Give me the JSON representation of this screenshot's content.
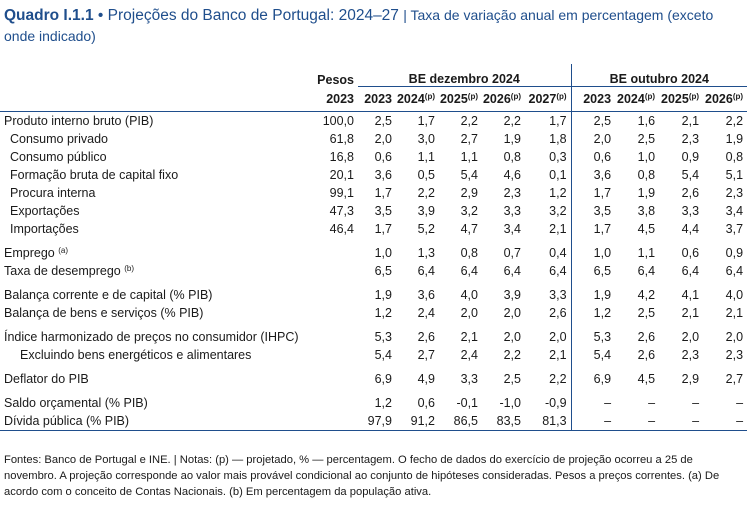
{
  "title": {
    "label": "Quadro I.1.1",
    "bullet": "•",
    "main": "Projeções do Banco de Portugal: 2024–27",
    "sub": "| Taxa de variação anual em percentagem (exceto onde indicado)"
  },
  "header": {
    "weights_label": "Pesos",
    "weights_year": "2023",
    "group_dec": "BE dezembro 2024",
    "group_oct": "BE outubro 2024",
    "years_dec": [
      {
        "y": "2023",
        "sup": ""
      },
      {
        "y": "2024",
        "sup": "(p)"
      },
      {
        "y": "2025",
        "sup": "(p)"
      },
      {
        "y": "2026",
        "sup": "(p)"
      },
      {
        "y": "2027",
        "sup": "(p)"
      }
    ],
    "years_oct": [
      {
        "y": "2023",
        "sup": ""
      },
      {
        "y": "2024",
        "sup": "(p)"
      },
      {
        "y": "2025",
        "sup": "(p)"
      },
      {
        "y": "2026",
        "sup": "(p)"
      }
    ]
  },
  "rows": [
    {
      "label": "Produto interno bruto (PIB)",
      "sup": "",
      "indent": 0,
      "w": "100,0",
      "dec": [
        "2,5",
        "1,7",
        "2,2",
        "2,2",
        "1,7"
      ],
      "oct": [
        "2,5",
        "1,6",
        "2,1",
        "2,2"
      ]
    },
    {
      "label": "Consumo privado",
      "sup": "",
      "indent": 1,
      "w": "61,8",
      "dec": [
        "2,0",
        "3,0",
        "2,7",
        "1,9",
        "1,8"
      ],
      "oct": [
        "2,0",
        "2,5",
        "2,3",
        "1,9"
      ]
    },
    {
      "label": "Consumo público",
      "sup": "",
      "indent": 1,
      "w": "16,8",
      "dec": [
        "0,6",
        "1,1",
        "1,1",
        "0,8",
        "0,3"
      ],
      "oct": [
        "0,6",
        "1,0",
        "0,9",
        "0,8"
      ]
    },
    {
      "label": "Formação bruta de capital fixo",
      "sup": "",
      "indent": 1,
      "w": "20,1",
      "dec": [
        "3,6",
        "0,5",
        "5,4",
        "4,6",
        "0,1"
      ],
      "oct": [
        "3,6",
        "0,8",
        "5,4",
        "5,1"
      ]
    },
    {
      "label": "Procura interna",
      "sup": "",
      "indent": 1,
      "w": "99,1",
      "dec": [
        "1,7",
        "2,2",
        "2,9",
        "2,3",
        "1,2"
      ],
      "oct": [
        "1,7",
        "1,9",
        "2,6",
        "2,3"
      ]
    },
    {
      "label": "Exportações",
      "sup": "",
      "indent": 1,
      "w": "47,3",
      "dec": [
        "3,5",
        "3,9",
        "3,2",
        "3,3",
        "3,2"
      ],
      "oct": [
        "3,5",
        "3,8",
        "3,3",
        "3,4"
      ]
    },
    {
      "label": "Importações",
      "sup": "",
      "indent": 1,
      "w": "46,4",
      "dec": [
        "1,7",
        "5,2",
        "4,7",
        "3,4",
        "2,1"
      ],
      "oct": [
        "1,7",
        "4,5",
        "4,4",
        "3,7"
      ],
      "gapAfter": true
    },
    {
      "label": "Emprego",
      "sup": "(a)",
      "indent": 0,
      "w": "",
      "dec": [
        "1,0",
        "1,3",
        "0,8",
        "0,7",
        "0,4"
      ],
      "oct": [
        "1,0",
        "1,1",
        "0,6",
        "0,9"
      ]
    },
    {
      "label": "Taxa de desemprego",
      "sup": "(b)",
      "indent": 0,
      "w": "",
      "dec": [
        "6,5",
        "6,4",
        "6,4",
        "6,4",
        "6,4"
      ],
      "oct": [
        "6,5",
        "6,4",
        "6,4",
        "6,4"
      ],
      "gapAfter": true
    },
    {
      "label": "Balança corrente e de capital (% PIB)",
      "sup": "",
      "indent": 0,
      "w": "",
      "dec": [
        "1,9",
        "3,6",
        "4,0",
        "3,9",
        "3,3"
      ],
      "oct": [
        "1,9",
        "4,2",
        "4,1",
        "4,0"
      ]
    },
    {
      "label": "Balança de bens e serviços (% PIB)",
      "sup": "",
      "indent": 0,
      "w": "",
      "dec": [
        "1,2",
        "2,4",
        "2,0",
        "2,0",
        "2,6"
      ],
      "oct": [
        "1,2",
        "2,5",
        "2,1",
        "2,1"
      ],
      "gapAfter": true
    },
    {
      "label": "Índice harmonizado de preços no consumidor (IHPC)",
      "sup": "",
      "indent": 0,
      "w": "",
      "dec": [
        "5,3",
        "2,6",
        "2,1",
        "2,0",
        "2,0"
      ],
      "oct": [
        "5,3",
        "2,6",
        "2,0",
        "2,0"
      ]
    },
    {
      "label": "Excluindo bens energéticos e alimentares",
      "sup": "",
      "indent": 2,
      "w": "",
      "dec": [
        "5,4",
        "2,7",
        "2,4",
        "2,2",
        "2,1"
      ],
      "oct": [
        "5,4",
        "2,6",
        "2,3",
        "2,3"
      ],
      "gapAfter": true
    },
    {
      "label": "Deflator do PIB",
      "sup": "",
      "indent": 0,
      "w": "",
      "dec": [
        "6,9",
        "4,9",
        "3,3",
        "2,5",
        "2,2"
      ],
      "oct": [
        "6,9",
        "4,5",
        "2,9",
        "2,7"
      ],
      "gapAfter": true
    },
    {
      "label": "Saldo orçamental (% PIB)",
      "sup": "",
      "indent": 0,
      "w": "",
      "dec": [
        "1,2",
        "0,6",
        "-0,1",
        "-1,0",
        "-0,9"
      ],
      "oct": [
        "–",
        "–",
        "–",
        "–"
      ]
    },
    {
      "label": "Dívida pública (% PIB)",
      "sup": "",
      "indent": 0,
      "w": "",
      "dec": [
        "97,9",
        "91,2",
        "86,5",
        "83,5",
        "81,3"
      ],
      "oct": [
        "–",
        "–",
        "–",
        "–"
      ],
      "last": true
    }
  ],
  "footnote": "Fontes: Banco de Portugal e INE. | Notas: (p) — projetado, % — percentagem. O fecho de dados do exercício de projeção ocorreu a 25 de novembro. A projeção corresponde ao valor mais provável condicional ao conjunto de hipóteses consideradas. Pesos a preços correntes. (a) De acordo com o conceito de Contas Nacionais. (b) Em percentagem da população ativa."
}
